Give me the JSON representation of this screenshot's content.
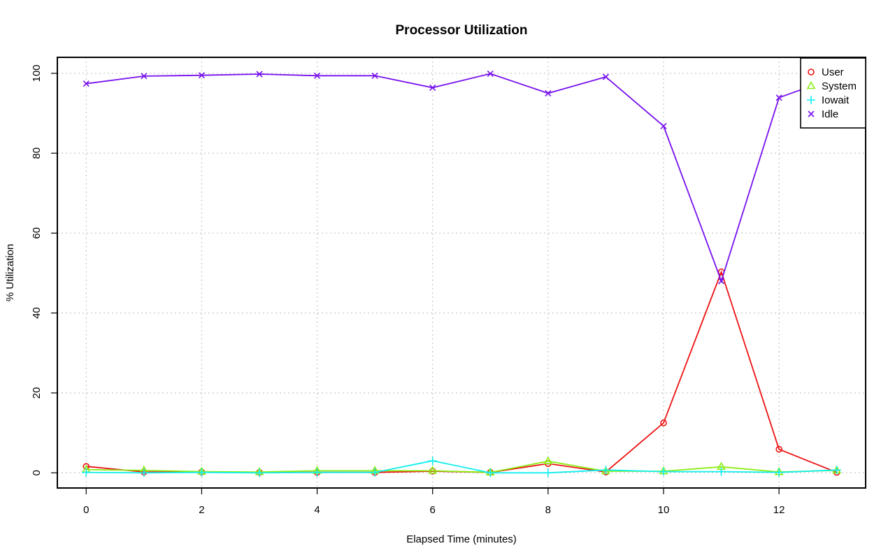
{
  "chart_data": {
    "type": "line",
    "title": "Processor Utilization",
    "xlabel": "Elapsed Time (minutes)",
    "ylabel": "% Utilization",
    "xlim": [
      -0.5,
      13.5
    ],
    "ylim": [
      -3.8,
      104
    ],
    "xticks": [
      0,
      2,
      4,
      6,
      8,
      10,
      12
    ],
    "yticks": [
      0,
      20,
      40,
      60,
      80,
      100
    ],
    "grid": true,
    "legend_position": "top-right",
    "x": [
      0,
      1,
      2,
      3,
      4,
      5,
      6,
      7,
      8,
      9,
      10,
      11,
      12,
      13
    ],
    "series": [
      {
        "name": "User",
        "color": "#ee1111",
        "marker": "circle",
        "values": [
          1.6,
          0.2,
          0.2,
          0.1,
          0.1,
          0.1,
          0.4,
          0.1,
          2.3,
          0.2,
          12.5,
          50.3,
          5.9,
          0.1
        ]
      },
      {
        "name": "System",
        "color": "#88ee11",
        "marker": "triangle",
        "values": [
          0.8,
          0.6,
          0.3,
          0.2,
          0.5,
          0.5,
          0.5,
          0.1,
          2.9,
          0.4,
          0.4,
          1.5,
          0.2,
          0.6
        ]
      },
      {
        "name": "Iowait",
        "color": "#11eeee",
        "marker": "plus",
        "values": [
          0.1,
          0.0,
          0.1,
          0.0,
          0.1,
          0.1,
          3.0,
          0.0,
          0.0,
          0.7,
          0.3,
          0.3,
          0.1,
          0.7
        ]
      },
      {
        "name": "Idle",
        "color": "#7711ee",
        "marker": "x",
        "values": [
          97.4,
          99.3,
          99.5,
          99.8,
          99.4,
          99.4,
          96.4,
          99.9,
          95.0,
          99.1,
          86.8,
          48.0,
          93.9,
          99.1
        ]
      }
    ]
  }
}
